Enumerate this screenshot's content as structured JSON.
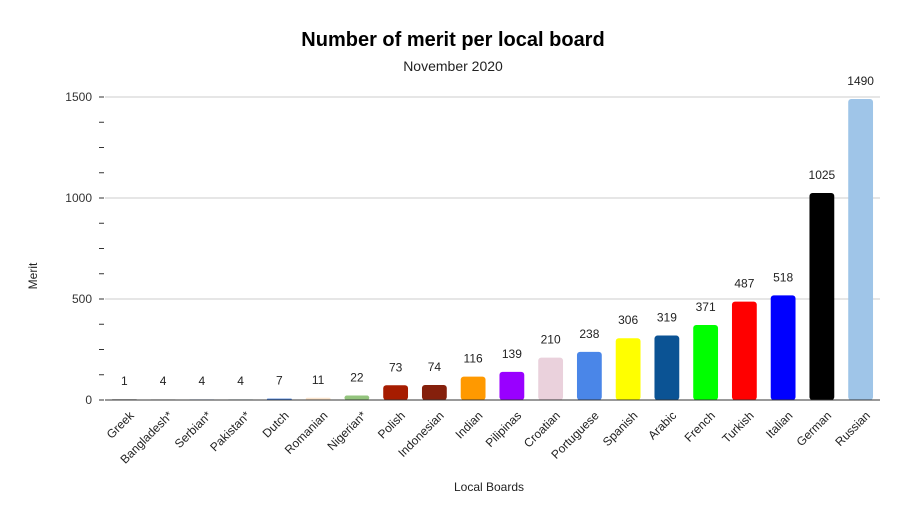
{
  "chart_data": {
    "type": "bar",
    "title": "Number of merit per local board",
    "subtitle": "November 2020",
    "xlabel": "Local Boards",
    "ylabel": "Merit",
    "ylim": [
      0,
      1500
    ],
    "yticks": [
      0,
      500,
      1000,
      1500
    ],
    "grid": true,
    "legend": "none",
    "categories": [
      "Greek",
      "Bangladesh*",
      "Serbian*",
      "Pakistan*",
      "Dutch",
      "Romanian",
      "Nigerian*",
      "Polish",
      "Indonesian",
      "Indian",
      "Pilipinas",
      "Croatian",
      "Portuguese",
      "Spanish",
      "Arabic",
      "French",
      "Turkish",
      "Italian",
      "German",
      "Russian"
    ],
    "values": [
      1,
      4,
      4,
      4,
      7,
      11,
      22,
      73,
      74,
      116,
      139,
      210,
      238,
      306,
      319,
      371,
      487,
      518,
      1025,
      1490
    ],
    "colors": [
      "#7a7a7a",
      "#d9d9d9",
      "#c9daf8",
      "#d0e0e3",
      "#3c78d8",
      "#fce5cd",
      "#93c47d",
      "#a61c00",
      "#85200c",
      "#ff9900",
      "#9900ff",
      "#ead1dc",
      "#4a86e8",
      "#ffff00",
      "#0b5394",
      "#00ff00",
      "#ff0000",
      "#0000ff",
      "#000000",
      "#9fc5e8"
    ]
  }
}
